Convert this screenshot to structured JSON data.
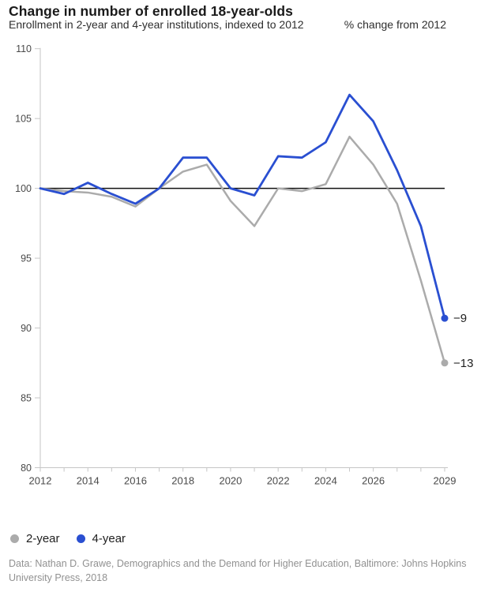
{
  "header": {
    "title": "Change in number of enrolled 18-year-olds",
    "subtitle": "Enrollment in 2-year and 4-year institutions, indexed to 2012",
    "right_label": "% change from 2012"
  },
  "chart_data": {
    "type": "line",
    "title": "Change in number of enrolled 18-year-olds",
    "subtitle": "Enrollment in 2-year and 4-year institutions, indexed to 2012",
    "unit_note": "% change from 2012",
    "x": [
      2012,
      2013,
      2014,
      2015,
      2016,
      2017,
      2018,
      2019,
      2020,
      2021,
      2022,
      2023,
      2024,
      2025,
      2026,
      2027,
      2028,
      2029
    ],
    "series": [
      {
        "name": "2-year",
        "color": "#ababab",
        "values": [
          100,
          99.8,
          99.7,
          99.4,
          98.7,
          100.0,
          101.2,
          101.7,
          99.1,
          97.3,
          100.0,
          99.8,
          100.3,
          103.7,
          101.7,
          98.9,
          93.4,
          87.5
        ],
        "end_label": "−13"
      },
      {
        "name": "4-year",
        "color": "#2a4fd1",
        "values": [
          100,
          99.6,
          100.4,
          99.6,
          98.9,
          100.0,
          102.2,
          102.2,
          100.0,
          99.5,
          102.3,
          102.2,
          103.3,
          106.7,
          104.8,
          101.3,
          97.3,
          90.7
        ],
        "end_label": "−9"
      }
    ],
    "y_ticks": [
      110,
      105,
      100,
      95,
      90,
      85,
      80
    ],
    "x_tick_labels": [
      "2012",
      "2014",
      "2016",
      "2018",
      "2020",
      "2022",
      "2024",
      "2026",
      "2029"
    ],
    "reference_value": 100,
    "ylim": [
      80,
      110
    ],
    "xlim": [
      2012,
      2029
    ],
    "grid": "none",
    "legend_position": "bottom-left",
    "colors": {
      "reference_line": "#111111",
      "axis": "#c6c6c6",
      "tick_text": "#4a4a4a",
      "end_label_text": "#1f1f1f"
    }
  },
  "legend": {
    "items": [
      {
        "label": "2-year",
        "color": "#ababab"
      },
      {
        "label": "4-year",
        "color": "#2a4fd1"
      }
    ]
  },
  "footer": {
    "source": "Data: Nathan D. Grawe, Demographics and the Demand for Higher Education, Baltimore: Johns Hopkins University Press, 2018"
  }
}
